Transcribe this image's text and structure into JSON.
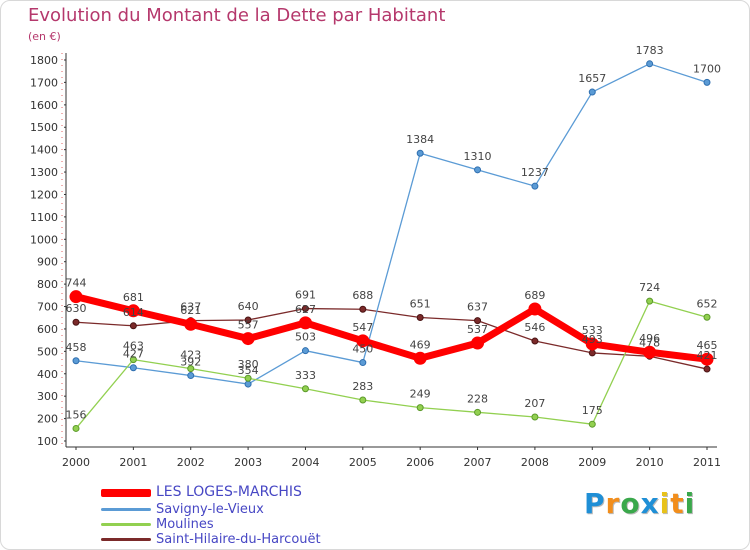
{
  "chart_data": {
    "type": "line",
    "title": "Evolution du Montant de la Dette par Habitant",
    "ylabel": "(en €)",
    "xlabel": "",
    "categories": [
      "2000",
      "2001",
      "2002",
      "2003",
      "2004",
      "2005",
      "2006",
      "2007",
      "2008",
      "2009",
      "2010",
      "2011"
    ],
    "ylim": [
      100,
      1800
    ],
    "yticks": [
      100,
      200,
      300,
      400,
      500,
      600,
      700,
      800,
      900,
      1000,
      1100,
      1200,
      1300,
      1400,
      1500,
      1600,
      1700,
      1800
    ],
    "grid": false,
    "series": [
      {
        "name": "LES LOGES-MARCHIS",
        "color": "#ff0000",
        "values": [
          744,
          681,
          621,
          557,
          627,
          547,
          469,
          537,
          689,
          533,
          496,
          465
        ]
      },
      {
        "name": "Savigny-le-Vieux",
        "color": "#5b9bd5",
        "values": [
          458,
          427,
          392,
          354,
          503,
          450,
          1384,
          1310,
          1237,
          1657,
          1783,
          1700
        ]
      },
      {
        "name": "Moulines",
        "color": "#92d050",
        "values": [
          156,
          463,
          423,
          380,
          333,
          283,
          249,
          228,
          207,
          175,
          724,
          652
        ]
      },
      {
        "name": "Saint-Hilaire-du-Harcouët",
        "color": "#7b2a2a",
        "values": [
          630,
          614,
          637,
          640,
          691,
          688,
          651,
          637,
          546,
          493,
          478,
          421
        ]
      }
    ]
  },
  "legend": {
    "items": [
      {
        "label": "LES LOGES-MARCHIS"
      },
      {
        "label": "Savigny-le-Vieux"
      },
      {
        "label": "Moulines"
      },
      {
        "label": "Saint-Hilaire-du-Harcouët"
      }
    ]
  },
  "brand": {
    "letters": [
      "P",
      "r",
      "o",
      "x",
      "i",
      "t",
      "i"
    ],
    "colors": [
      "#1f8fd6",
      "#f28e1c",
      "#3aa84b",
      "#1f8fd6",
      "#e8c21a",
      "#f28e1c",
      "#3aa84b"
    ]
  }
}
